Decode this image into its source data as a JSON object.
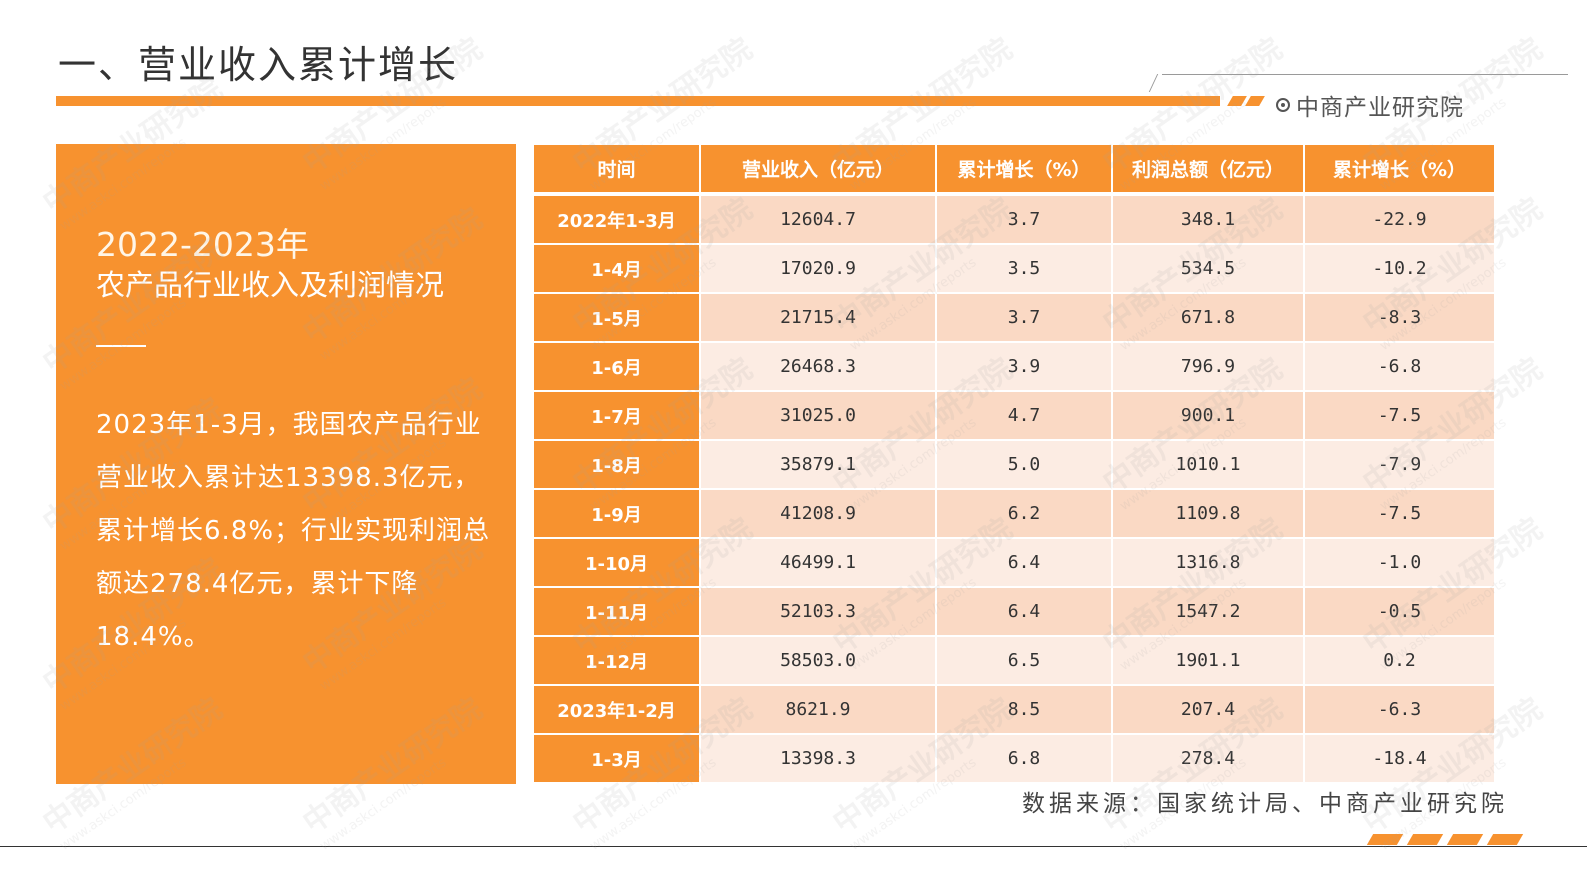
{
  "header": {
    "title": "一、营业收入累计增长",
    "brand": "中商产业研究院",
    "accent_color": "#F7922F"
  },
  "summary": {
    "year_range": "2022-2023年",
    "subtitle": "农产品行业收入及利润情况",
    "body": "2023年1-3月，我国农产品行业营业收入累计达13398.3亿元，累计增长6.8%；行业实现利润总额达278.4亿元，累计下降18.4%。"
  },
  "table": {
    "headers": [
      "时间",
      "营业收入（亿元）",
      "累计增长（%）",
      "利润总额（亿元）",
      "累计增长（%）"
    ],
    "rows": [
      [
        "2022年1-3月",
        "12604.7",
        "3.7",
        "348.1",
        "-22.9"
      ],
      [
        "1-4月",
        "17020.9",
        "3.5",
        "534.5",
        "-10.2"
      ],
      [
        "1-5月",
        "21715.4",
        "3.7",
        "671.8",
        "-8.3"
      ],
      [
        "1-6月",
        "26468.3",
        "3.9",
        "796.9",
        "-6.8"
      ],
      [
        "1-7月",
        "31025.0",
        "4.7",
        "900.1",
        "-7.5"
      ],
      [
        "1-8月",
        "35879.1",
        "5.0",
        "1010.1",
        "-7.9"
      ],
      [
        "1-9月",
        "41208.9",
        "6.2",
        "1109.8",
        "-7.5"
      ],
      [
        "1-10月",
        "46499.1",
        "6.4",
        "1316.8",
        "-1.0"
      ],
      [
        "1-11月",
        "52103.3",
        "6.4",
        "1547.2",
        "-0.5"
      ],
      [
        "1-12月",
        "58503.0",
        "6.5",
        "1901.1",
        "0.2"
      ],
      [
        "2023年1-2月",
        "8621.9",
        "8.5",
        "207.4",
        "-6.3"
      ],
      [
        "1-3月",
        "13398.3",
        "6.8",
        "278.4",
        "-18.4"
      ]
    ]
  },
  "footer": {
    "source": "数据来源：国家统计局、中商产业研究院"
  },
  "watermark": {
    "text": "中商产业研究院",
    "url": "www.askci.com/reports"
  }
}
